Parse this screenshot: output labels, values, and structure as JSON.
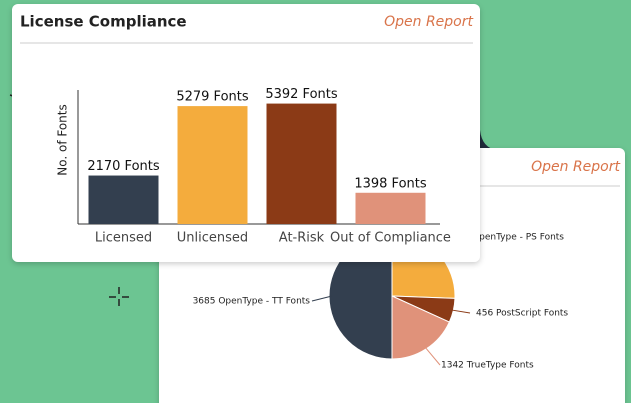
{
  "chart_data": [
    {
      "type": "bar",
      "title": "License Compliance",
      "link": "Open Report",
      "ylabel": "No. of Fonts",
      "categories": [
        "Licensed",
        "Unlicensed",
        "At-Risk",
        "Out of Compliance"
      ],
      "values": [
        2170,
        5279,
        5392,
        1398
      ],
      "value_labels": [
        "2170 Fonts",
        "5279 Fonts",
        "5392 Fonts",
        "1398 Fonts"
      ],
      "colors": [
        "#333f4f",
        "#f4ac3d",
        "#8b3a16",
        "#e0927a"
      ],
      "ylim": [
        0,
        6000
      ]
    },
    {
      "type": "pie",
      "link": "Open Report",
      "labels": [
        "OpenType - PS Fonts",
        "456 PostScript Fonts",
        "1342 TrueType Fonts",
        "3685 OpenType - TT Fonts"
      ],
      "values": [
        1887,
        456,
        1342,
        3685
      ],
      "colors": [
        "#f4ac3d",
        "#8b3a16",
        "#e0927a",
        "#333f4f"
      ]
    }
  ]
}
